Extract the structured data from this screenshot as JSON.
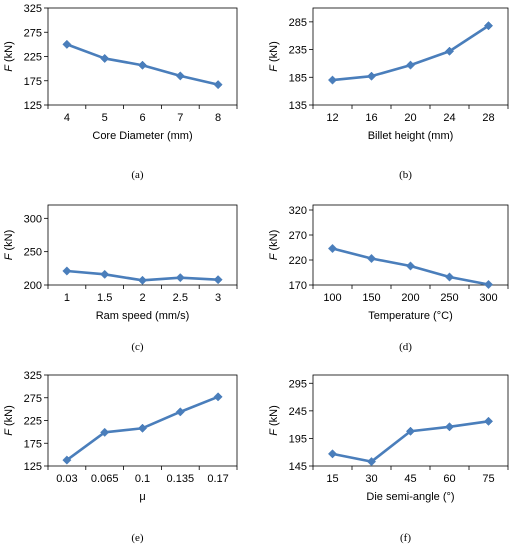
{
  "chart_data": [
    {
      "type": "line",
      "panel_label": "(a)",
      "categories": [
        "4",
        "5",
        "6",
        "7",
        "8"
      ],
      "values": [
        250,
        221,
        207,
        185,
        167
      ],
      "xlabel": "Core Diameter (mm)",
      "ylabel_symbol": "F",
      "ylabel_unit": " (kN)",
      "ylim": [
        125,
        325
      ],
      "yticks": [
        125,
        175,
        225,
        275,
        325
      ],
      "grid": false,
      "marker": "diamond",
      "color": "#4a7ebb"
    },
    {
      "type": "line",
      "panel_label": "(b)",
      "categories": [
        "12",
        "16",
        "20",
        "24",
        "28"
      ],
      "values": [
        180,
        187,
        207,
        232,
        278
      ],
      "xlabel": "Billet height (mm)",
      "ylabel_symbol": "F",
      "ylabel_unit": " (kN)",
      "ylim": [
        135,
        310
      ],
      "yticks": [
        135,
        185,
        235,
        285
      ],
      "grid": false,
      "marker": "diamond",
      "color": "#4a7ebb"
    },
    {
      "type": "line",
      "panel_label": "(c)",
      "categories": [
        "1",
        "1.5",
        "2",
        "2.5",
        "3"
      ],
      "values": [
        221,
        216,
        207,
        211,
        208
      ],
      "xlabel": "Ram speed (mm/s)",
      "ylabel_symbol": "F",
      "ylabel_unit": " (kN)",
      "ylim": [
        200,
        320
      ],
      "yticks": [
        200,
        250,
        300
      ],
      "grid": false,
      "marker": "diamond",
      "color": "#4a7ebb"
    },
    {
      "type": "line",
      "panel_label": "(d)",
      "categories": [
        "100",
        "150",
        "200",
        "250",
        "300"
      ],
      "values": [
        243,
        223,
        208,
        186,
        171
      ],
      "xlabel": "Temperature (°C)",
      "ylabel_symbol": "F",
      "ylabel_unit": " (kN)",
      "ylim": [
        170,
        330
      ],
      "yticks": [
        170,
        220,
        270,
        320
      ],
      "grid": false,
      "marker": "diamond",
      "color": "#4a7ebb"
    },
    {
      "type": "line",
      "panel_label": "(e)",
      "categories": [
        "0.03",
        "0.065",
        "0.1",
        "0.135",
        "0.17"
      ],
      "values": [
        138,
        199,
        208,
        244,
        277
      ],
      "xlabel": "μ",
      "ylabel_symbol": "F",
      "ylabel_unit": " (kN)",
      "ylim": [
        125,
        325
      ],
      "yticks": [
        125,
        175,
        225,
        275,
        325
      ],
      "grid": false,
      "marker": "diamond",
      "color": "#4a7ebb"
    },
    {
      "type": "line",
      "panel_label": "(f)",
      "categories": [
        "15",
        "30",
        "45",
        "60",
        "75"
      ],
      "values": [
        167,
        153,
        208,
        216,
        226
      ],
      "xlabel": "Die semi-angle (°)",
      "ylabel_symbol": "F",
      "ylabel_unit": " (kN)",
      "ylim": [
        145,
        310
      ],
      "yticks": [
        145,
        195,
        245,
        295
      ],
      "grid": false,
      "marker": "diamond",
      "color": "#4a7ebb"
    }
  ]
}
